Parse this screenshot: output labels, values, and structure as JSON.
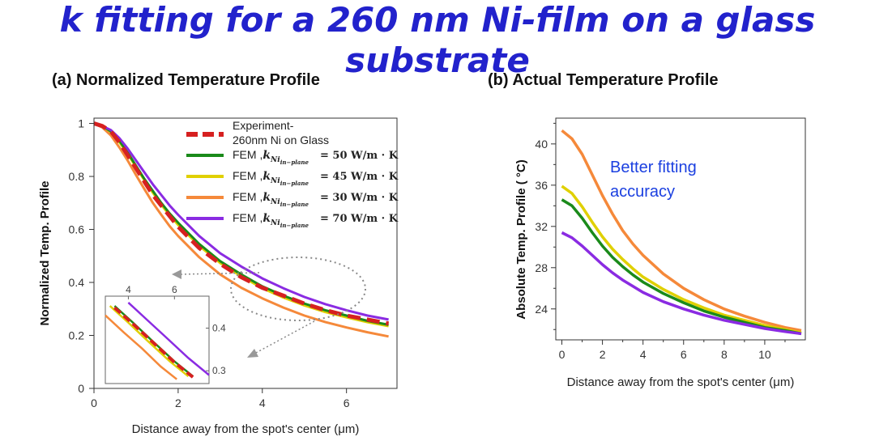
{
  "slide": {
    "title": "k fitting for a 260 nm Ni-film on a glass substrate"
  },
  "chart_data": [
    {
      "type": "line",
      "title": "(a) Normalized Temperature Profile",
      "xlabel": "Distance away from the spot's center (μm)",
      "ylabel": "Normalized Temp. Profile",
      "xlim": [
        0,
        7.2
      ],
      "ylim": [
        0,
        1.02
      ],
      "xticks": [
        "0",
        "2",
        "4",
        "6"
      ],
      "yticks": [
        "0",
        "0.2",
        "0.4",
        "0.6",
        "0.8",
        "1"
      ],
      "legend_position": "top-right",
      "series": [
        {
          "name": "Experiment- 260nm Ni on Glass",
          "legend_line1": "Experiment-",
          "legend_line2": "260nm Ni on Glass",
          "color": "#d62020",
          "dashed": true,
          "x": [
            0,
            0.2,
            0.4,
            0.6,
            0.8,
            1,
            1.2,
            1.4,
            1.6,
            1.8,
            2,
            2.5,
            3,
            3.5,
            4,
            4.5,
            5,
            5.5,
            6,
            6.5,
            7
          ],
          "y": [
            1.0,
            0.99,
            0.97,
            0.93,
            0.88,
            0.83,
            0.78,
            0.73,
            0.69,
            0.65,
            0.61,
            0.53,
            0.47,
            0.42,
            0.38,
            0.35,
            0.32,
            0.295,
            0.275,
            0.26,
            0.245
          ]
        },
        {
          "name": "FEM ,k_Ni_in-plane = 50 W/m·K",
          "legend_prefix": "FEM ,",
          "k_symbol": "k",
          "k_subscript": "Ni",
          "k_subsub": "in−plane",
          "k_value": "= 50 W/m · K",
          "color": "#1a8a1a",
          "dashed": false,
          "x": [
            0,
            0.2,
            0.4,
            0.6,
            0.8,
            1,
            1.2,
            1.4,
            1.6,
            1.8,
            2,
            2.5,
            3,
            3.5,
            4,
            4.5,
            5,
            5.5,
            6,
            6.5,
            7
          ],
          "y": [
            1.0,
            0.99,
            0.97,
            0.935,
            0.89,
            0.84,
            0.79,
            0.745,
            0.7,
            0.66,
            0.625,
            0.545,
            0.48,
            0.43,
            0.385,
            0.35,
            0.32,
            0.295,
            0.275,
            0.255,
            0.24
          ]
        },
        {
          "name": "FEM ,k_Ni_in-plane = 45 W/m·K",
          "legend_prefix": "FEM ,",
          "k_symbol": "k",
          "k_subscript": "Ni",
          "k_subsub": "in−plane",
          "k_value": "= 45 W/m · K",
          "color": "#e0d000",
          "dashed": false,
          "x": [
            0,
            0.2,
            0.4,
            0.6,
            0.8,
            1,
            1.2,
            1.4,
            1.6,
            1.8,
            2,
            2.5,
            3,
            3.5,
            4,
            4.5,
            5,
            5.5,
            6,
            6.5,
            7
          ],
          "y": [
            1.0,
            0.99,
            0.968,
            0.93,
            0.885,
            0.835,
            0.785,
            0.738,
            0.693,
            0.653,
            0.617,
            0.538,
            0.473,
            0.423,
            0.378,
            0.343,
            0.313,
            0.288,
            0.268,
            0.25,
            0.235
          ]
        },
        {
          "name": "FEM ,k_Ni_in-plane = 30 W/m·K",
          "legend_prefix": "FEM ,",
          "k_symbol": "k",
          "k_subscript": "Ni",
          "k_subsub": "in−plane",
          "k_value": "= 30 W/m · K",
          "color": "#f5893a",
          "dashed": false,
          "x": [
            0,
            0.2,
            0.4,
            0.6,
            0.8,
            1,
            1.2,
            1.4,
            1.6,
            1.8,
            2,
            2.5,
            3,
            3.5,
            4,
            4.5,
            5,
            5.5,
            6,
            6.5,
            7
          ],
          "y": [
            1.0,
            0.985,
            0.955,
            0.91,
            0.86,
            0.805,
            0.752,
            0.7,
            0.655,
            0.612,
            0.575,
            0.495,
            0.43,
            0.38,
            0.34,
            0.305,
            0.275,
            0.25,
            0.23,
            0.212,
            0.196
          ]
        },
        {
          "name": "FEM ,k_Ni_in-plane = 70 W/m·K",
          "legend_prefix": "FEM ,",
          "k_symbol": "k",
          "k_subscript": "Ni",
          "k_subsub": "in−plane",
          "k_value": "= 70 W/m · K",
          "color": "#8a2be2",
          "dashed": false,
          "x": [
            0,
            0.2,
            0.4,
            0.6,
            0.8,
            1,
            1.2,
            1.4,
            1.6,
            1.8,
            2,
            2.5,
            3,
            3.5,
            4,
            4.5,
            5,
            5.5,
            6,
            6.5,
            7
          ],
          "y": [
            1.0,
            0.99,
            0.975,
            0.945,
            0.905,
            0.86,
            0.815,
            0.77,
            0.73,
            0.69,
            0.655,
            0.575,
            0.51,
            0.46,
            0.415,
            0.378,
            0.345,
            0.318,
            0.295,
            0.275,
            0.26
          ]
        }
      ],
      "inset": {
        "xlim": [
          3,
          7.5
        ],
        "ylim": [
          0.27,
          0.475
        ],
        "xticks": [
          "4",
          "6"
        ],
        "yticks": [
          "0.4",
          "0.3"
        ],
        "curves": [
          {
            "color": "#d62020",
            "dashed": true,
            "x": [
              3.4,
              4.2,
              5.0,
              6.0,
              6.8
            ],
            "y": [
              0.448,
              0.41,
              0.37,
              0.32,
              0.285
            ]
          },
          {
            "color": "#1a8a1a",
            "dashed": false,
            "x": [
              3.4,
              4.2,
              5.0,
              6.0,
              6.8
            ],
            "y": [
              0.452,
              0.413,
              0.372,
              0.322,
              0.287
            ]
          },
          {
            "color": "#e0d000",
            "dashed": false,
            "x": [
              3.2,
              4.0,
              4.8,
              5.8,
              6.6
            ],
            "y": [
              0.452,
              0.413,
              0.372,
              0.322,
              0.287
            ]
          },
          {
            "color": "#f5893a",
            "dashed": false,
            "x": [
              3.0,
              3.8,
              4.6,
              5.4,
              6.1
            ],
            "y": [
              0.43,
              0.39,
              0.352,
              0.31,
              0.28
            ]
          },
          {
            "color": "#8a2be2",
            "dashed": false,
            "x": [
              4.0,
              4.8,
              5.6,
              6.6,
              7.5
            ],
            "y": [
              0.46,
              0.42,
              0.38,
              0.33,
              0.29
            ]
          }
        ]
      }
    },
    {
      "type": "line",
      "title": "(b) Actual Temperature Profile",
      "xlabel": "Distance away from the spot's center (μm)",
      "ylabel": "Absolute Temp. Profile ( °C)",
      "xlim": [
        -0.3,
        12
      ],
      "ylim": [
        21,
        42.5
      ],
      "xticks": [
        "0",
        "2",
        "4",
        "6",
        "8",
        "10"
      ],
      "yticks": [
        "24",
        "28",
        "32",
        "36",
        "40"
      ],
      "annotation_line1": "Better fitting",
      "annotation_line2": "accuracy",
      "annotation_color": "#1a3fe0",
      "series": [
        {
          "color": "#f5893a",
          "x": [
            0,
            0.5,
            1,
            1.5,
            2,
            2.5,
            3,
            3.5,
            4,
            5,
            6,
            7,
            8,
            9,
            10,
            11,
            11.8
          ],
          "y": [
            41.3,
            40.5,
            39.0,
            37.0,
            35.0,
            33.2,
            31.6,
            30.3,
            29.2,
            27.4,
            26.0,
            24.9,
            24.0,
            23.3,
            22.7,
            22.2,
            21.9
          ]
        },
        {
          "color": "#e0d000",
          "x": [
            0,
            0.5,
            1,
            1.5,
            2,
            2.5,
            3,
            3.5,
            4,
            5,
            6,
            7,
            8,
            9,
            10,
            11,
            11.8
          ],
          "y": [
            35.9,
            35.2,
            33.9,
            32.4,
            31.0,
            29.8,
            28.8,
            27.9,
            27.1,
            25.9,
            24.9,
            24.1,
            23.4,
            22.9,
            22.4,
            22.0,
            21.7
          ]
        },
        {
          "color": "#1a8a1a",
          "x": [
            0,
            0.5,
            1,
            1.5,
            2,
            2.5,
            3,
            3.5,
            4,
            5,
            6,
            7,
            8,
            9,
            10,
            11,
            11.8
          ],
          "y": [
            34.6,
            34.0,
            32.8,
            31.4,
            30.1,
            29.0,
            28.1,
            27.3,
            26.6,
            25.5,
            24.6,
            23.8,
            23.2,
            22.7,
            22.2,
            21.9,
            21.6
          ]
        },
        {
          "color": "#8a2be2",
          "x": [
            0,
            0.5,
            1,
            1.5,
            2,
            2.5,
            3,
            3.5,
            4,
            5,
            6,
            7,
            8,
            9,
            10,
            11,
            11.8
          ],
          "y": [
            31.4,
            30.9,
            30.1,
            29.2,
            28.3,
            27.5,
            26.8,
            26.2,
            25.6,
            24.7,
            24.0,
            23.4,
            22.9,
            22.5,
            22.1,
            21.8,
            21.6
          ]
        }
      ]
    }
  ]
}
